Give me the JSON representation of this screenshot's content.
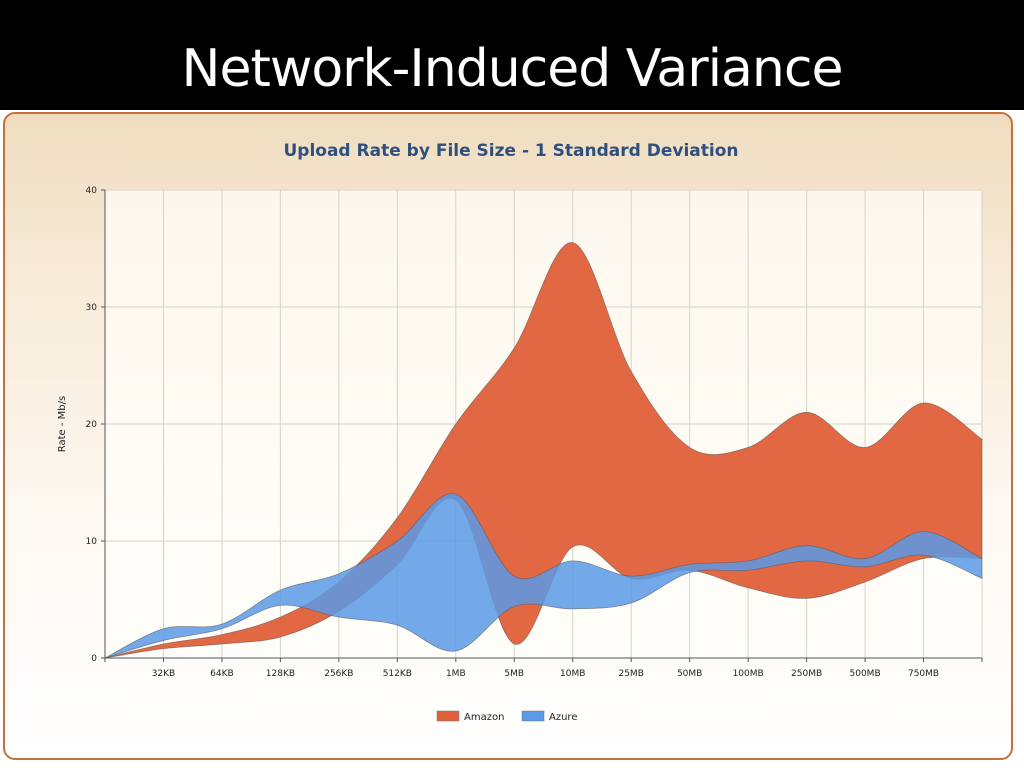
{
  "slide": {
    "title": "Network-Induced Variance"
  },
  "colors": {
    "amazon": "#e0603a",
    "azure": "#5a9ae6",
    "panel_border": "#c8703c",
    "title_text": "#2f4f7f"
  },
  "chart_data": {
    "type": "area",
    "title": "Upload Rate by File Size - 1 Standard Deviation",
    "xlabel": "",
    "ylabel": "Rate - Mb/s",
    "ylim": [
      0,
      40
    ],
    "yticks": [
      0,
      10,
      20,
      30,
      40
    ],
    "categories": [
      "",
      "32KB",
      "64KB",
      "128KB",
      "256KB",
      "512KB",
      "1MB",
      "5MB",
      "10MB",
      "25MB",
      "50MB",
      "100MB",
      "250MB",
      "500MB",
      "750MB",
      ""
    ],
    "legend_position": "bottom-center",
    "grid": true,
    "series": [
      {
        "name": "Amazon",
        "color": "#e0603a",
        "upper": [
          0,
          1.2,
          2.0,
          3.5,
          6.5,
          12.0,
          20.0,
          26.5,
          35.5,
          24.5,
          18.0,
          18.0,
          21.0,
          18.0,
          21.8,
          18.7
        ],
        "lower": [
          0,
          0.8,
          1.2,
          1.8,
          4.0,
          8.0,
          13.5,
          1.2,
          9.5,
          6.8,
          7.5,
          6.0,
          5.1,
          6.5,
          8.5,
          8.5
        ]
      },
      {
        "name": "Azure",
        "color": "#5a9ae6",
        "upper": [
          0,
          2.5,
          2.9,
          5.8,
          7.2,
          10.0,
          14.0,
          7.0,
          8.3,
          7.0,
          8.0,
          8.3,
          9.6,
          8.5,
          10.8,
          8.5
        ],
        "lower": [
          0,
          1.5,
          2.5,
          4.5,
          3.5,
          2.8,
          0.6,
          4.4,
          4.2,
          4.7,
          7.3,
          7.5,
          8.3,
          7.8,
          8.8,
          6.8
        ]
      }
    ]
  }
}
